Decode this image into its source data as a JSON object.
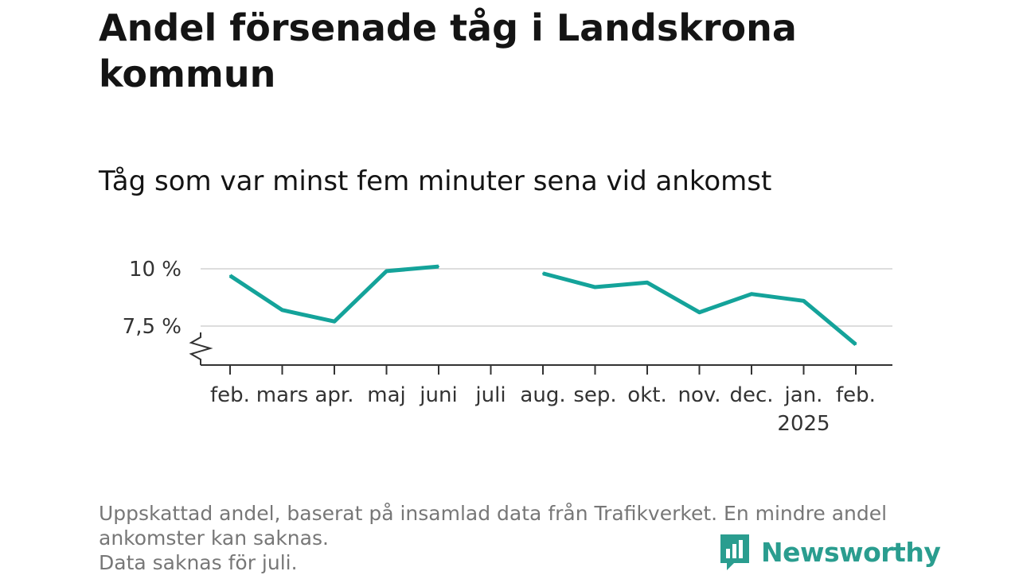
{
  "title": "Andel försenade tåg i Landskrona kommun",
  "subtitle": "Tåg som var minst fem minuter sena vid ankomst",
  "footer": {
    "note_line1": "Uppskattad andel, baserat på insamlad data från Trafikverket. En mindre andel",
    "note_line2": "ankomster kan saknas.",
    "note_line3": "Data saknas för juli."
  },
  "brand": {
    "name": "Newsworthy",
    "color": "#2a9d8f"
  },
  "chart_data": {
    "type": "line",
    "title": "Andel försenade tåg i Landskrona kommun",
    "subtitle": "Tåg som var minst fem minuter sena vid ankomst",
    "categories": [
      "feb.",
      "mars",
      "apr.",
      "maj",
      "juni",
      "juli",
      "aug.",
      "sep.",
      "okt.",
      "nov.",
      "dec.",
      "jan.",
      "feb."
    ],
    "year_label": {
      "category_index": 11,
      "text": "2025"
    },
    "values": [
      9.7,
      8.2,
      7.7,
      9.9,
      10.1,
      null,
      9.8,
      9.2,
      9.4,
      8.1,
      8.9,
      8.6,
      6.7
    ],
    "y_ticks": [
      {
        "value": 7.5,
        "label": "7,5 %"
      },
      {
        "value": 10,
        "label": "10 %"
      }
    ],
    "y_axis_break": true,
    "grid": true,
    "line_color": "#14a39a",
    "missing": [
      "juli"
    ]
  }
}
